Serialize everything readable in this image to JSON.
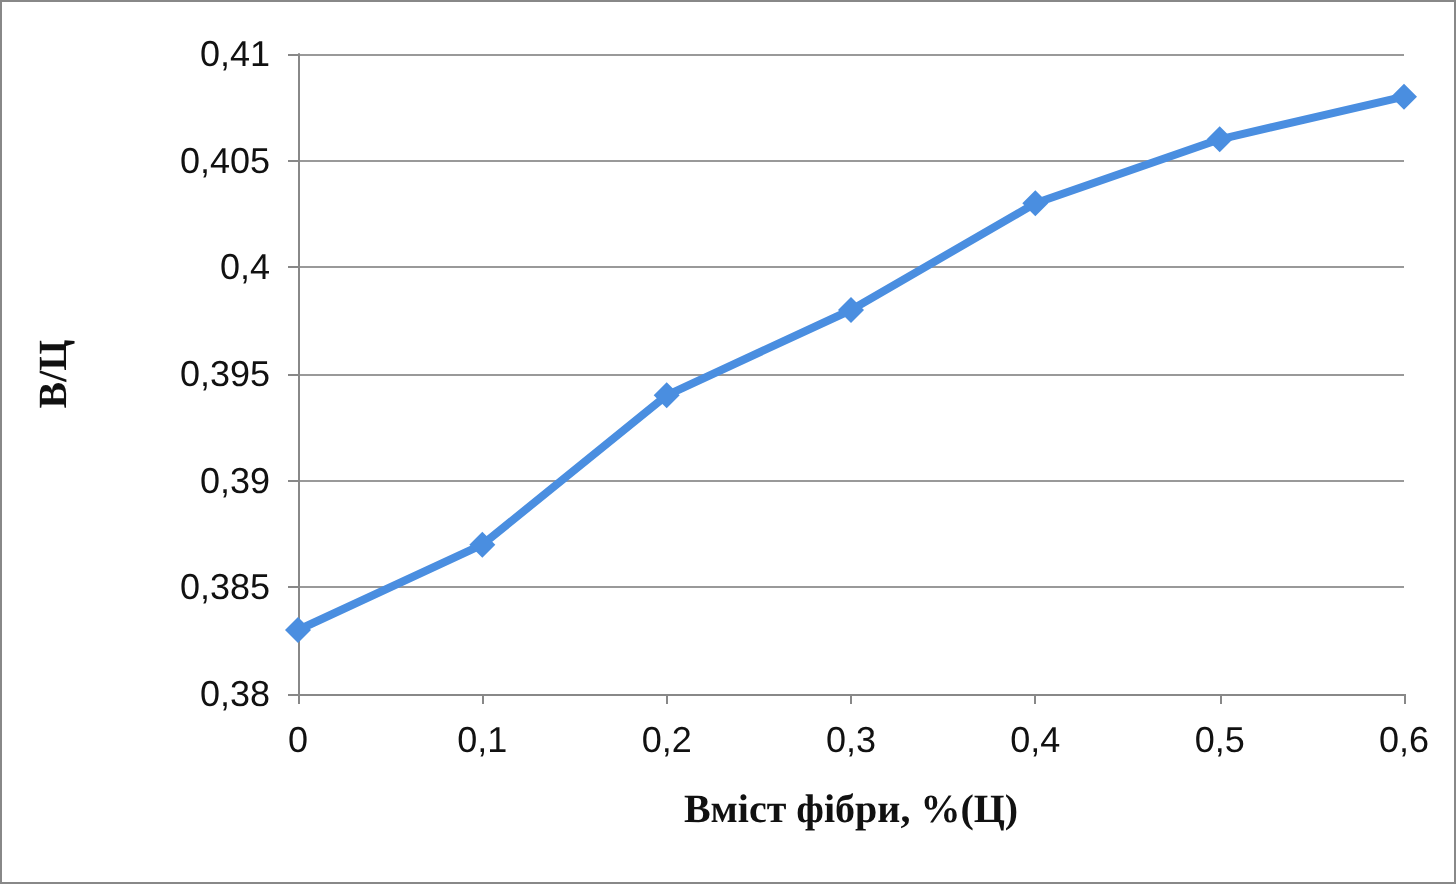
{
  "chart_data": {
    "type": "line",
    "xlabel": "Вміст фібри, %(Ц)",
    "ylabel": "В/Ц",
    "categories": [
      "0",
      "0,1",
      "0,2",
      "0,3",
      "0,4",
      "0,5",
      "0,6"
    ],
    "series": [
      {
        "color": "#4a8ee0",
        "values": [
          0.383,
          0.387,
          0.394,
          0.398,
          0.403,
          0.406,
          0.408
        ]
      }
    ],
    "ylim": [
      0.38,
      0.41
    ],
    "yticks": [
      {
        "value": 0.38,
        "label": "0,38"
      },
      {
        "value": 0.385,
        "label": "0,385"
      },
      {
        "value": 0.39,
        "label": "0,39"
      },
      {
        "value": 0.395,
        "label": "0,395"
      },
      {
        "value": 0.4,
        "label": "0,4"
      },
      {
        "value": 0.405,
        "label": "0,405"
      },
      {
        "value": 0.41,
        "label": "0,41"
      }
    ],
    "grid": "y",
    "marker": "diamond",
    "line_style": "solid"
  }
}
